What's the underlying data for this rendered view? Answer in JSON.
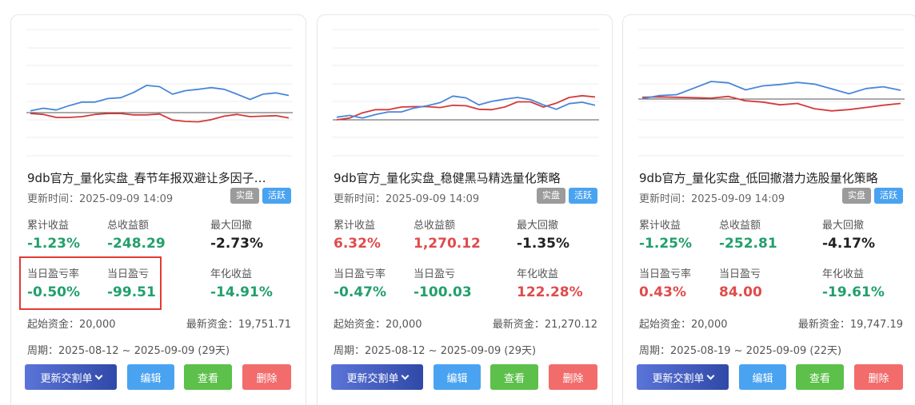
{
  "cards": [
    {
      "title": "9db官方_量化实盘_春节年报双避让多因子…",
      "update_label": "更新时间：",
      "update_time": "2025-09-09 14:09",
      "badges": [
        "实盘",
        "活跃"
      ],
      "stats": {
        "cum_return_label": "累计收益",
        "cum_return": "-1.23%",
        "total_pnl_label": "总收益额",
        "total_pnl": "-248.29",
        "max_dd_label": "最大回撤",
        "max_dd": "-2.73%",
        "daily_rate_label": "当日盈亏率",
        "daily_rate": "-0.50%",
        "daily_pnl_label": "当日盈亏",
        "daily_pnl": "-99.51",
        "annual_label": "年化收益",
        "annual": "-14.91%"
      },
      "start_capital": "起始资金：20,000",
      "latest_capital": "最新资金：19,751.71",
      "period": "周期：2025-08-12 ~ 2025-09-09 (29天)",
      "chart": {
        "blue": [
          0.4,
          1.0,
          0.6,
          1.6,
          2.4,
          2.4,
          3.2,
          3.4,
          4.6,
          6.2,
          5.9,
          4.2,
          5.0,
          5.3,
          5.7,
          5.3,
          4.2,
          3.0,
          4.2,
          4.5,
          3.9
        ],
        "red": [
          -0.2,
          -0.4,
          -1.1,
          -1.1,
          -0.9,
          -0.4,
          -0.2,
          -0.2,
          -0.5,
          -0.5,
          -0.3,
          -1.7,
          -2.0,
          -2.1,
          -1.6,
          -0.8,
          -0.4,
          -0.9,
          -0.8,
          -0.7,
          -1.2
        ]
      }
    },
    {
      "title": "9db官方_量化实盘_稳健黑马精选量化策略",
      "update_label": "更新时间：",
      "update_time": "2025-09-09 14:09",
      "badges": [
        "实盘",
        "活跃"
      ],
      "stats": {
        "cum_return_label": "累计收益",
        "cum_return": "6.32%",
        "total_pnl_label": "总收益额",
        "total_pnl": "1,270.12",
        "max_dd_label": "最大回撤",
        "max_dd": "-1.35%",
        "daily_rate_label": "当日盈亏率",
        "daily_rate": "-0.47%",
        "daily_pnl_label": "当日盈亏",
        "daily_pnl": "-100.03",
        "annual_label": "年化收益",
        "annual": "122.28%"
      },
      "start_capital": "起始资金：20,000",
      "latest_capital": "最新资金：21,270.12",
      "period": "周期：2025-08-12 ~ 2025-09-09 (29天)",
      "chart": {
        "blue": [
          0.6,
          1.0,
          0.4,
          1.2,
          1.8,
          1.8,
          2.7,
          3.2,
          3.9,
          5.4,
          5.0,
          3.4,
          4.2,
          4.7,
          5.1,
          4.6,
          3.4,
          2.4,
          3.7,
          4.0,
          3.3
        ],
        "red": [
          0.0,
          0.4,
          1.6,
          2.3,
          2.3,
          2.9,
          3.0,
          3.0,
          2.8,
          3.3,
          3.2,
          2.4,
          2.3,
          2.9,
          4.1,
          4.1,
          2.9,
          3.8,
          5.1,
          5.5,
          5.2
        ]
      }
    },
    {
      "title": "9db官方_量化实盘_低回撤潜力选股量化策略",
      "update_label": "更新时间：",
      "update_time": "2025-09-09 14:09",
      "badges": [
        "实盘",
        "活跃"
      ],
      "stats": {
        "cum_return_label": "累计收益",
        "cum_return": "-1.25%",
        "total_pnl_label": "总收益额",
        "total_pnl": "-252.81",
        "max_dd_label": "最大回撤",
        "max_dd": "-4.17%",
        "daily_rate_label": "当日盈亏率",
        "daily_rate": "0.43%",
        "daily_pnl_label": "当日盈亏",
        "daily_pnl": "84.00",
        "annual_label": "年化收益",
        "annual": "-19.61%"
      },
      "start_capital": "起始资金：20,000",
      "latest_capital": "最新资金：19,747.19",
      "period": "周期：2025-08-19 ~ 2025-09-09 (22天)",
      "chart": {
        "blue": [
          0.1,
          0.8,
          1.0,
          2.5,
          4.0,
          3.7,
          2.1,
          3.0,
          3.3,
          3.8,
          3.4,
          2.3,
          1.2,
          2.4,
          2.8,
          2.0
        ],
        "red": [
          0.4,
          0.5,
          0.4,
          0.3,
          0.2,
          0.6,
          -0.4,
          -0.7,
          -1.3,
          -1.0,
          -2.2,
          -2.7,
          -2.4,
          -1.9,
          -1.4,
          -1.0
        ]
      }
    }
  ],
  "buttons": {
    "update": "更新交割单",
    "edit": "编辑",
    "view": "查看",
    "delete": "删除"
  },
  "colors": {
    "positive": "#e04b4b",
    "negative": "#22a06b",
    "line_blue": "#4a86d8",
    "line_red": "#d43a3a",
    "highlight_border": "#e53935"
  }
}
